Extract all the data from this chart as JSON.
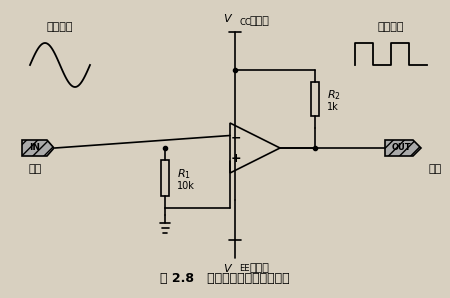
{
  "title": "图 2.8   基于运放的过零检测电路",
  "label_shidian": "市电波形",
  "label_kongzhi": "控制波形",
  "label_in": "IN",
  "label_out": "OUT",
  "label_input": "输入",
  "label_output": "输出",
  "label_vcc": "V",
  "label_vcc_sub": "CC",
  "label_vee": "V",
  "label_vee_sub": "EE",
  "label_pos_power": "正电源",
  "label_neg_power": "负电源",
  "label_r1": "R",
  "label_r1_sub": "1",
  "label_r1_val": "10k",
  "label_r2": "R",
  "label_r2_sub": "2",
  "label_r2_val": "1k",
  "bg_color": "#d8d0c0",
  "line_color": "#000000",
  "fig_width": 4.5,
  "fig_height": 2.98
}
